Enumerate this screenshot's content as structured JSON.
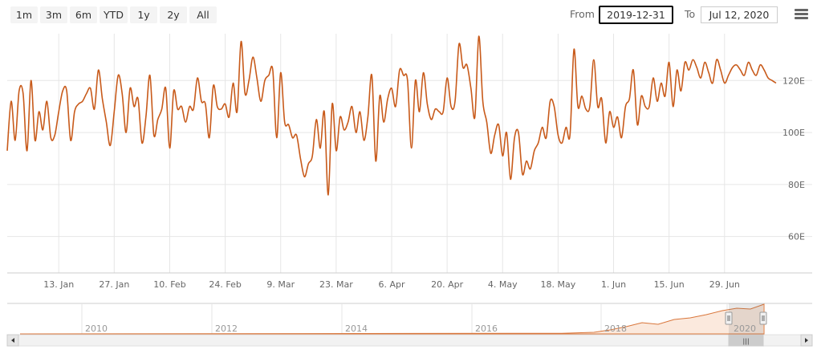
{
  "range_selector": {
    "buttons": [
      "1m",
      "3m",
      "6m",
      "YTD",
      "1y",
      "2y",
      "All"
    ],
    "from_label": "From",
    "from_value": "2019-12-31",
    "to_label": "To",
    "to_value": "Jul 12, 2020"
  },
  "colors": {
    "line": "#c85a1a",
    "grid": "#e6e6e6",
    "navigator_fill": "#fbe9dd"
  },
  "chart_data": {
    "type": "line",
    "title": "",
    "xlabel": "",
    "ylabel": "",
    "ylim": [
      46,
      138
    ],
    "grid": true,
    "x_range": [
      "2019-12-31",
      "2020-07-12"
    ],
    "yticks": [
      {
        "value": 60,
        "label": "60E"
      },
      {
        "value": 80,
        "label": "80E"
      },
      {
        "value": 100,
        "label": "100E"
      },
      {
        "value": 120,
        "label": "120E"
      }
    ],
    "xticks": [
      {
        "date": "2020-01-13",
        "label": "13. Jan"
      },
      {
        "date": "2020-01-27",
        "label": "27. Jan"
      },
      {
        "date": "2020-02-10",
        "label": "10. Feb"
      },
      {
        "date": "2020-02-24",
        "label": "24. Feb"
      },
      {
        "date": "2020-03-09",
        "label": "9. Mar"
      },
      {
        "date": "2020-03-23",
        "label": "23. Mar"
      },
      {
        "date": "2020-04-06",
        "label": "6. Apr"
      },
      {
        "date": "2020-04-20",
        "label": "20. Apr"
      },
      {
        "date": "2020-05-04",
        "label": "4. May"
      },
      {
        "date": "2020-05-18",
        "label": "18. May"
      },
      {
        "date": "2020-06-01",
        "label": "1. Jun"
      },
      {
        "date": "2020-06-15",
        "label": "15. Jun"
      },
      {
        "date": "2020-06-29",
        "label": "29. Jun"
      }
    ],
    "series": [
      {
        "values": [
          [
            "2019-12-31",
            93
          ],
          [
            "2020-01-01",
            112
          ],
          [
            "2020-01-02",
            97
          ],
          [
            "2020-01-03",
            116
          ],
          [
            "2020-01-04",
            115
          ],
          [
            "2020-01-05",
            93
          ],
          [
            "2020-01-06",
            120
          ],
          [
            "2020-01-07",
            97
          ],
          [
            "2020-01-08",
            108
          ],
          [
            "2020-01-09",
            101
          ],
          [
            "2020-01-10",
            112
          ],
          [
            "2020-01-11",
            98
          ],
          [
            "2020-01-12",
            99
          ],
          [
            "2020-01-13",
            108
          ],
          [
            "2020-01-14",
            116
          ],
          [
            "2020-01-15",
            116
          ],
          [
            "2020-01-16",
            97
          ],
          [
            "2020-01-17",
            108
          ],
          [
            "2020-01-18",
            111
          ],
          [
            "2020-01-19",
            112
          ],
          [
            "2020-01-20",
            115
          ],
          [
            "2020-01-21",
            117
          ],
          [
            "2020-01-22",
            109
          ],
          [
            "2020-01-23",
            124
          ],
          [
            "2020-01-24",
            113
          ],
          [
            "2020-01-25",
            104
          ],
          [
            "2020-01-26",
            95
          ],
          [
            "2020-01-27",
            108
          ],
          [
            "2020-01-28",
            122
          ],
          [
            "2020-01-29",
            115
          ],
          [
            "2020-01-30",
            100
          ],
          [
            "2020-01-31",
            117
          ],
          [
            "2020-02-01",
            110
          ],
          [
            "2020-02-02",
            113
          ],
          [
            "2020-02-03",
            96
          ],
          [
            "2020-02-04",
            106
          ],
          [
            "2020-02-05",
            122
          ],
          [
            "2020-02-06",
            99
          ],
          [
            "2020-02-07",
            105
          ],
          [
            "2020-02-08",
            109
          ],
          [
            "2020-02-09",
            117
          ],
          [
            "2020-02-10",
            94
          ],
          [
            "2020-02-11",
            116
          ],
          [
            "2020-02-12",
            109
          ],
          [
            "2020-02-13",
            110
          ],
          [
            "2020-02-14",
            104
          ],
          [
            "2020-02-15",
            110
          ],
          [
            "2020-02-16",
            109
          ],
          [
            "2020-02-17",
            121
          ],
          [
            "2020-02-18",
            112
          ],
          [
            "2020-02-19",
            111
          ],
          [
            "2020-02-20",
            98
          ],
          [
            "2020-02-21",
            118
          ],
          [
            "2020-02-22",
            110
          ],
          [
            "2020-02-23",
            109
          ],
          [
            "2020-02-24",
            111
          ],
          [
            "2020-02-25",
            106
          ],
          [
            "2020-02-26",
            119
          ],
          [
            "2020-02-27",
            108
          ],
          [
            "2020-02-28",
            135
          ],
          [
            "2020-02-29",
            115
          ],
          [
            "2020-03-01",
            120
          ],
          [
            "2020-03-02",
            129
          ],
          [
            "2020-03-03",
            121
          ],
          [
            "2020-03-04",
            112
          ],
          [
            "2020-03-05",
            120
          ],
          [
            "2020-03-06",
            122
          ],
          [
            "2020-03-07",
            124
          ],
          [
            "2020-03-08",
            98
          ],
          [
            "2020-03-09",
            123
          ],
          [
            "2020-03-10",
            104
          ],
          [
            "2020-03-11",
            103
          ],
          [
            "2020-03-12",
            98
          ],
          [
            "2020-03-13",
            99
          ],
          [
            "2020-03-14",
            90
          ],
          [
            "2020-03-15",
            83
          ],
          [
            "2020-03-16",
            88
          ],
          [
            "2020-03-17",
            91
          ],
          [
            "2020-03-18",
            105
          ],
          [
            "2020-03-19",
            94
          ],
          [
            "2020-03-20",
            108
          ],
          [
            "2020-03-21",
            76
          ],
          [
            "2020-03-22",
            111
          ],
          [
            "2020-03-23",
            93
          ],
          [
            "2020-03-24",
            106
          ],
          [
            "2020-03-25",
            101
          ],
          [
            "2020-03-26",
            104
          ],
          [
            "2020-03-27",
            110
          ],
          [
            "2020-03-28",
            100
          ],
          [
            "2020-03-29",
            108
          ],
          [
            "2020-03-30",
            97
          ],
          [
            "2020-03-31",
            106
          ],
          [
            "2020-04-01",
            122
          ],
          [
            "2020-04-02",
            89
          ],
          [
            "2020-04-03",
            114
          ],
          [
            "2020-04-04",
            104
          ],
          [
            "2020-04-05",
            113
          ],
          [
            "2020-04-06",
            117
          ],
          [
            "2020-04-07",
            110
          ],
          [
            "2020-04-08",
            124
          ],
          [
            "2020-04-09",
            122
          ],
          [
            "2020-04-10",
            120
          ],
          [
            "2020-04-11",
            94
          ],
          [
            "2020-04-12",
            120
          ],
          [
            "2020-04-13",
            108
          ],
          [
            "2020-04-14",
            123
          ],
          [
            "2020-04-15",
            111
          ],
          [
            "2020-04-16",
            105
          ],
          [
            "2020-04-17",
            109
          ],
          [
            "2020-04-18",
            108
          ],
          [
            "2020-04-19",
            108
          ],
          [
            "2020-04-20",
            121
          ],
          [
            "2020-04-21",
            110
          ],
          [
            "2020-04-22",
            112
          ],
          [
            "2020-04-23",
            134
          ],
          [
            "2020-04-24",
            125
          ],
          [
            "2020-04-25",
            126
          ],
          [
            "2020-04-26",
            117
          ],
          [
            "2020-04-27",
            106
          ],
          [
            "2020-04-28",
            137
          ],
          [
            "2020-04-29",
            112
          ],
          [
            "2020-04-30",
            104
          ],
          [
            "2020-05-01",
            92
          ],
          [
            "2020-05-02",
            99
          ],
          [
            "2020-05-03",
            103
          ],
          [
            "2020-05-04",
            91
          ],
          [
            "2020-05-05",
            100
          ],
          [
            "2020-05-06",
            82
          ],
          [
            "2020-05-07",
            98
          ],
          [
            "2020-05-08",
            100
          ],
          [
            "2020-05-09",
            84
          ],
          [
            "2020-05-10",
            89
          ],
          [
            "2020-05-11",
            86
          ],
          [
            "2020-05-12",
            93
          ],
          [
            "2020-05-13",
            96
          ],
          [
            "2020-05-14",
            102
          ],
          [
            "2020-05-15",
            98
          ],
          [
            "2020-05-16",
            112
          ],
          [
            "2020-05-17",
            110
          ],
          [
            "2020-05-18",
            99
          ],
          [
            "2020-05-19",
            96
          ],
          [
            "2020-05-20",
            102
          ],
          [
            "2020-05-21",
            99
          ],
          [
            "2020-05-22",
            132
          ],
          [
            "2020-05-23",
            110
          ],
          [
            "2020-05-24",
            114
          ],
          [
            "2020-05-25",
            109
          ],
          [
            "2020-05-26",
            110
          ],
          [
            "2020-05-27",
            128
          ],
          [
            "2020-05-28",
            110
          ],
          [
            "2020-05-29",
            113
          ],
          [
            "2020-05-30",
            96
          ],
          [
            "2020-05-31",
            108
          ],
          [
            "2020-06-01",
            102
          ],
          [
            "2020-06-02",
            106
          ],
          [
            "2020-06-03",
            98
          ],
          [
            "2020-06-04",
            110
          ],
          [
            "2020-06-05",
            113
          ],
          [
            "2020-06-06",
            124
          ],
          [
            "2020-06-07",
            103
          ],
          [
            "2020-06-08",
            114
          ],
          [
            "2020-06-09",
            110
          ],
          [
            "2020-06-10",
            110
          ],
          [
            "2020-06-11",
            121
          ],
          [
            "2020-06-12",
            112
          ],
          [
            "2020-06-13",
            119
          ],
          [
            "2020-06-14",
            114
          ],
          [
            "2020-06-15",
            127
          ],
          [
            "2020-06-16",
            110
          ],
          [
            "2020-06-17",
            124
          ],
          [
            "2020-06-18",
            116
          ],
          [
            "2020-06-19",
            127
          ],
          [
            "2020-06-20",
            124
          ],
          [
            "2020-06-21",
            128
          ],
          [
            "2020-06-22",
            125
          ],
          [
            "2020-06-23",
            121
          ],
          [
            "2020-06-24",
            127
          ],
          [
            "2020-06-25",
            123
          ],
          [
            "2020-06-26",
            119
          ],
          [
            "2020-06-27",
            128
          ],
          [
            "2020-06-28",
            124
          ],
          [
            "2020-06-29",
            119
          ],
          [
            "2020-06-30",
            122
          ],
          [
            "2020-07-01",
            125
          ],
          [
            "2020-07-02",
            126
          ],
          [
            "2020-07-03",
            124
          ],
          [
            "2020-07-04",
            122
          ],
          [
            "2020-07-05",
            127
          ],
          [
            "2020-07-06",
            124
          ],
          [
            "2020-07-07",
            122
          ],
          [
            "2020-07-08",
            126
          ],
          [
            "2020-07-09",
            124
          ],
          [
            "2020-07-10",
            121
          ],
          [
            "2020-07-11",
            120
          ],
          [
            "2020-07-12",
            119
          ]
        ]
      }
    ],
    "navigator": {
      "year_labels": [
        "2010",
        "2012",
        "2014",
        "2016",
        "2018",
        "2020"
      ],
      "scrollbar_grip": "|||"
    }
  }
}
